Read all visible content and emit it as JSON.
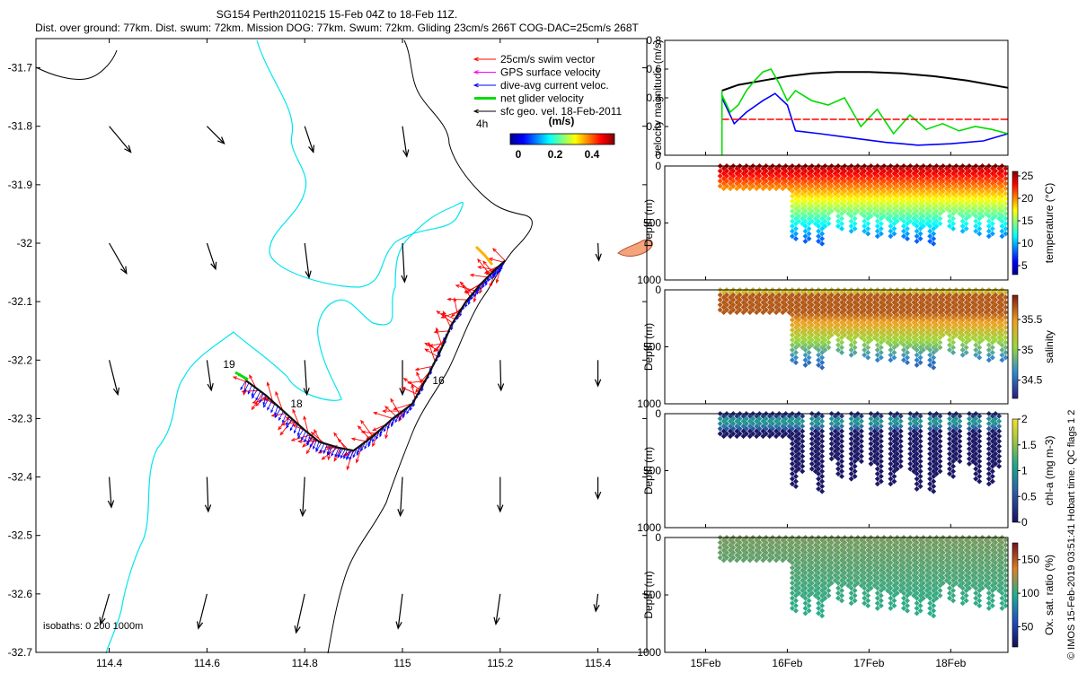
{
  "header": {
    "title_line1": "SG154 Perth20110215 15-Feb 04Z to 18-Feb 11Z.",
    "title_line2": "Dist. over ground: 77km. Dist. swum: 72km. Mission DOG: 77km. Swum: 72km. Gliding 23cm/s 266T COG-DAC=25cm/s 268T"
  },
  "map": {
    "legend": [
      {
        "label": "25cm/s swim vector",
        "color": "#ff0000"
      },
      {
        "label": "GPS surface velocity",
        "color": "#ff00ff"
      },
      {
        "label": "dive-avg current veloc.",
        "color": "#0000ff"
      },
      {
        "label": "net glider velocity",
        "color": "#00dd00"
      },
      {
        "label": "sfc geo. vel. 18-Feb-2011",
        "color": "#000000"
      }
    ],
    "legend_note": "4h",
    "colorbar_title": "(m/s)",
    "colorbar_ticks": [
      "0",
      "0.2",
      "0.4"
    ],
    "isobaths_label": "isobaths: 0   200  1000m",
    "day_labels": [
      "19",
      "18",
      "16"
    ]
  },
  "side_note": "© IMOS 15-Feb-2019 03:51:41 Hobart time. QC flags 1  2",
  "colors": {
    "swim": "#ff0000",
    "current": "#0000ff",
    "net": "#00dd00",
    "isobath200": "#00e5ee",
    "coast": "#000000",
    "land": "#f5a37a"
  },
  "chart_data": [
    {
      "type": "quiver-map",
      "name": "glider-track-map",
      "xlim": [
        114.25,
        115.5
      ],
      "ylim": [
        -32.7,
        -31.65
      ],
      "xticks": [
        114.4,
        114.6,
        114.8,
        115,
        115.2,
        115.4
      ],
      "xtick_labels": [
        "114.4",
        "114.6",
        "114.8",
        "115",
        "115.2",
        "115.4"
      ],
      "yticks": [
        -31.7,
        -31.8,
        -31.9,
        -32,
        -32.1,
        -32.2,
        -32.3,
        -32.4,
        -32.5,
        -32.6,
        -32.7
      ],
      "ytick_labels": [
        "-31.7",
        "-31.8",
        "-31.9",
        "-32",
        "-32.1",
        "-32.2",
        "-32.3",
        "-32.4",
        "-32.5",
        "-32.6",
        "-32.7"
      ],
      "track_lon": [
        114.68,
        114.72,
        114.76,
        114.8,
        114.83,
        114.87,
        114.9,
        114.94,
        114.98,
        115.02,
        115.05,
        115.08,
        115.1,
        115.13,
        115.16,
        115.19,
        115.21
      ],
      "track_lat": [
        -32.235,
        -32.26,
        -32.29,
        -32.32,
        -32.34,
        -32.35,
        -32.355,
        -32.33,
        -32.3,
        -32.275,
        -32.23,
        -32.18,
        -32.14,
        -32.1,
        -32.07,
        -32.045,
        -32.03
      ],
      "geo_vectors": [
        {
          "lon": 114.4,
          "lat": -31.8,
          "u": 0.05,
          "v": -0.06
        },
        {
          "lon": 114.6,
          "lat": -31.8,
          "u": 0.04,
          "v": -0.04
        },
        {
          "lon": 114.8,
          "lat": -31.8,
          "u": 0.02,
          "v": -0.06
        },
        {
          "lon": 115.0,
          "lat": -31.8,
          "u": 0.01,
          "v": -0.07
        },
        {
          "lon": 114.4,
          "lat": -32.0,
          "u": 0.04,
          "v": -0.07
        },
        {
          "lon": 114.6,
          "lat": -32.0,
          "u": 0.02,
          "v": -0.06
        },
        {
          "lon": 114.8,
          "lat": -32.0,
          "u": 0.01,
          "v": -0.08
        },
        {
          "lon": 115.0,
          "lat": -32.0,
          "u": 0.005,
          "v": -0.09
        },
        {
          "lon": 115.4,
          "lat": -32.0,
          "u": 0.002,
          "v": -0.04
        },
        {
          "lon": 114.4,
          "lat": -32.2,
          "u": 0.02,
          "v": -0.08
        },
        {
          "lon": 114.6,
          "lat": -32.2,
          "u": 0.01,
          "v": -0.07
        },
        {
          "lon": 114.8,
          "lat": -32.2,
          "u": 0.005,
          "v": -0.08
        },
        {
          "lon": 115.0,
          "lat": -32.2,
          "u": 0.0,
          "v": -0.08
        },
        {
          "lon": 115.2,
          "lat": -32.2,
          "u": 0.002,
          "v": -0.07
        },
        {
          "lon": 115.4,
          "lat": -32.2,
          "u": 0.0,
          "v": -0.06
        },
        {
          "lon": 114.4,
          "lat": -32.4,
          "u": 0.005,
          "v": -0.07
        },
        {
          "lon": 114.6,
          "lat": -32.4,
          "u": 0.003,
          "v": -0.08
        },
        {
          "lon": 114.8,
          "lat": -32.4,
          "u": -0.005,
          "v": -0.09
        },
        {
          "lon": 115.0,
          "lat": -32.4,
          "u": -0.005,
          "v": -0.09
        },
        {
          "lon": 115.2,
          "lat": -32.4,
          "u": 0.0,
          "v": -0.08
        },
        {
          "lon": 115.4,
          "lat": -32.4,
          "u": 0.0,
          "v": -0.05
        },
        {
          "lon": 114.4,
          "lat": -32.6,
          "u": -0.02,
          "v": -0.07
        },
        {
          "lon": 114.6,
          "lat": -32.6,
          "u": -0.02,
          "v": -0.08
        },
        {
          "lon": 114.8,
          "lat": -32.6,
          "u": -0.02,
          "v": -0.09
        },
        {
          "lon": 115.0,
          "lat": -32.6,
          "u": -0.01,
          "v": -0.08
        },
        {
          "lon": 115.2,
          "lat": -32.6,
          "u": -0.01,
          "v": -0.07
        },
        {
          "lon": 115.4,
          "lat": -32.6,
          "u": -0.005,
          "v": -0.04
        }
      ]
    },
    {
      "type": "line",
      "name": "velocity-magnitude",
      "ylabel": "velocity magnitude (m/s)",
      "ylim": [
        0,
        0.8
      ],
      "yticks": [
        0,
        0.2,
        0.4,
        0.6,
        0.8
      ],
      "ytick_labels": [
        "0",
        "0.2",
        "0.4",
        "0.6",
        "0.8"
      ],
      "xlim": [
        14.5,
        18.7
      ],
      "series": [
        {
          "name": "sfc geo. vel.",
          "color": "#000000",
          "x": [
            15.2,
            15.4,
            15.7,
            16.0,
            16.3,
            16.6,
            17.0,
            17.4,
            17.8,
            18.2,
            18.7
          ],
          "y": [
            0.45,
            0.49,
            0.52,
            0.55,
            0.57,
            0.58,
            0.58,
            0.57,
            0.55,
            0.52,
            0.47
          ]
        },
        {
          "name": "dive-avg current",
          "color": "#0000ff",
          "x": [
            15.2,
            15.35,
            15.5,
            15.7,
            15.85,
            16.0,
            16.1,
            16.4,
            16.8,
            17.2,
            17.6,
            18.0,
            18.4,
            18.7
          ],
          "y": [
            0.4,
            0.22,
            0.3,
            0.38,
            0.43,
            0.35,
            0.17,
            0.15,
            0.12,
            0.09,
            0.07,
            0.08,
            0.1,
            0.15
          ]
        },
        {
          "name": "net glider velocity",
          "color": "#00dd00",
          "x": [
            15.2,
            15.3,
            15.4,
            15.5,
            15.6,
            15.7,
            15.8,
            15.9,
            16.0,
            16.1,
            16.3,
            16.5,
            16.7,
            16.9,
            17.1,
            17.3,
            17.5,
            17.7,
            17.9,
            18.1,
            18.3,
            18.5,
            18.7
          ],
          "y": [
            0.42,
            0.3,
            0.35,
            0.45,
            0.52,
            0.58,
            0.6,
            0.5,
            0.38,
            0.45,
            0.38,
            0.35,
            0.4,
            0.2,
            0.32,
            0.15,
            0.28,
            0.18,
            0.22,
            0.17,
            0.2,
            0.18,
            0.15
          ]
        },
        {
          "name": "25cm/s swim",
          "color": "#ff0000",
          "x": [
            15.2,
            18.7
          ],
          "y": [
            0.25,
            0.25
          ]
        }
      ]
    },
    {
      "type": "scatter",
      "name": "temperature-section",
      "ylabel": "Depth (m)",
      "clabel": "temperature (°C)",
      "ylim": [
        1000,
        0
      ],
      "yticks": [
        0,
        500,
        1000
      ],
      "ytick_labels": [
        "0",
        "500",
        "1000"
      ],
      "xlim": [
        14.5,
        18.7
      ],
      "clim": [
        3,
        26
      ],
      "cticks": [
        5,
        10,
        15,
        20,
        25
      ],
      "ctick_labels": [
        "5",
        "10",
        "15",
        "20",
        "25"
      ],
      "profile_depths": {
        "shallow": 200,
        "deep_min": 400,
        "deep_max": 700
      },
      "surface_value": 25,
      "deep_value": 8
    },
    {
      "type": "scatter",
      "name": "salinity-section",
      "ylabel": "Depth (m)",
      "clabel": "salinity",
      "ylim": [
        1000,
        0
      ],
      "yticks": [
        0,
        500,
        1000
      ],
      "ytick_labels": [
        "0",
        "500",
        "1000"
      ],
      "xlim": [
        14.5,
        18.7
      ],
      "clim": [
        34.2,
        35.9
      ],
      "cticks": [
        34.5,
        35,
        35.5
      ],
      "ctick_labels": [
        "34.5",
        "35",
        "35.5"
      ],
      "profile_depths": {
        "shallow": 200,
        "deep_min": 400,
        "deep_max": 700
      },
      "surface_value": 35.3,
      "mid_value": 35.7,
      "deep_value": 34.5
    },
    {
      "type": "scatter",
      "name": "chlorophyll-section",
      "ylabel": "Depth (m)",
      "clabel": "chl-a (mg m-3)",
      "ylim": [
        1000,
        0
      ],
      "yticks": [
        0,
        500,
        1000
      ],
      "ytick_labels": [
        "0",
        "500",
        "1000"
      ],
      "xlim": [
        14.5,
        18.7
      ],
      "clim": [
        0,
        2
      ],
      "cticks": [
        0,
        0.5,
        1,
        1.5,
        2
      ],
      "ctick_labels": [
        "0",
        "0.5",
        "1",
        "1.5",
        "2"
      ],
      "profile_depths": {
        "shallow": 200,
        "deep_min": 400,
        "deep_max": 700
      },
      "surface_value": 0.6,
      "deep_value": 0.05
    },
    {
      "type": "scatter",
      "name": "oxygen-section",
      "ylabel": "Depth (m)",
      "clabel": "Ox. sat. ratio (%)",
      "ylim": [
        1000,
        0
      ],
      "yticks": [
        0,
        500,
        1000
      ],
      "ytick_labels": [
        "0",
        "500",
        "1000"
      ],
      "xlim": [
        14.5,
        18.7
      ],
      "clim": [
        20,
        175
      ],
      "cticks": [
        50,
        100,
        150
      ],
      "ctick_labels": [
        "50",
        "100",
        "150"
      ],
      "xticks": [
        15,
        16,
        17,
        18
      ],
      "xtick_labels": [
        "15Feb",
        "16Feb",
        "17Feb",
        "18Feb"
      ],
      "profile_depths": {
        "shallow": 200,
        "deep_min": 400,
        "deep_max": 700
      },
      "surface_value": 115,
      "deep_value": 100
    }
  ]
}
